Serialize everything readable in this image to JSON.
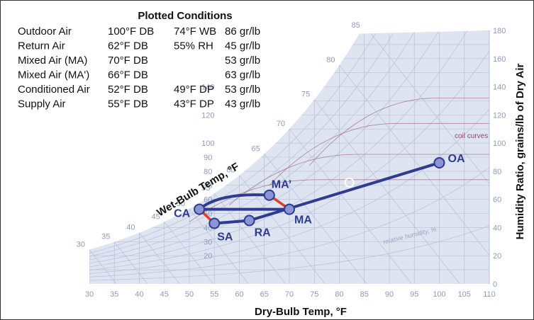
{
  "table": {
    "title": "Plotted Conditions",
    "rows": [
      {
        "name": "Outdoor Air",
        "db": "100°F DB",
        "second": "74°F WB",
        "gr": "86 gr/lb"
      },
      {
        "name": "Return Air",
        "db": "62°F DB",
        "second": "55% RH",
        "gr": "45 gr/lb"
      },
      {
        "name": "Mixed Air (MA)",
        "db": "70°F DB",
        "second": "",
        "gr": "53 gr/lb"
      },
      {
        "name": "Mixed Air (MA')",
        "db": "66°F DB",
        "second": "",
        "gr": "63 gr/lb"
      },
      {
        "name": "Conditioned Air",
        "db": "52°F DB",
        "second": "49°F DP",
        "gr": "53 gr/lb"
      },
      {
        "name": "Supply Air",
        "db": "55°F DB",
        "second": "43°F DP",
        "gr": "43 gr/lb"
      }
    ]
  },
  "chart_data": {
    "type": "scatter",
    "xlabel": "Dry-Bulb Temp, °F",
    "ylabel": "Humidity Ratio, grains/lb of Dry Air",
    "saturation_label": "Wet-Bulb Temp, °F",
    "xlim": [
      30,
      110
    ],
    "ylim": [
      0,
      180
    ],
    "x_ticks": [
      "30",
      "35",
      "40",
      "45",
      "50",
      "55",
      "60",
      "65",
      "70",
      "75",
      "80",
      "85",
      "90",
      "95",
      "100",
      "105",
      "110"
    ],
    "y_ticks": [
      "0",
      "20",
      "40",
      "60",
      "80",
      "100",
      "120",
      "140",
      "160",
      "180"
    ],
    "y_minor_ticks": [
      "20",
      "30",
      "40",
      "50",
      "60",
      "70",
      "80",
      "90",
      "100",
      "120",
      "140"
    ],
    "wb_ticks": [
      "30",
      "35",
      "40",
      "45",
      "50",
      "55",
      "60",
      "65",
      "70",
      "75",
      "80",
      "85"
    ],
    "annotations": {
      "coil_curves": "coil curves",
      "relative_humidity": "relative humidity, %"
    },
    "points": [
      {
        "label": "OA",
        "x": 100,
        "y": 86
      },
      {
        "label": "RA",
        "x": 62,
        "y": 45
      },
      {
        "label": "MA",
        "x": 70,
        "y": 53
      },
      {
        "label": "MA’",
        "x": 66,
        "y": 63
      },
      {
        "label": "CA",
        "x": 52,
        "y": 53
      },
      {
        "label": "SA",
        "x": 55,
        "y": 43
      }
    ],
    "colors": {
      "chart_bg": "#dfe4f1",
      "grid": "#b6c0da",
      "process_line": "#2e3b8f",
      "point_fill": "#8b94d4",
      "coil_segment": "#e0402a",
      "coil_curves": "#a0607e"
    }
  }
}
